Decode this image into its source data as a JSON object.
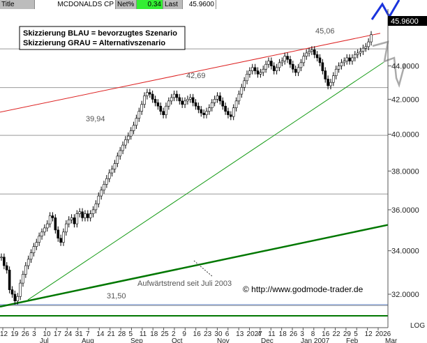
{
  "header": {
    "title_label": "Title",
    "symbol": "MCDONALDS CP",
    "netpct_label": "Net%",
    "netpct_value": "0.34",
    "last_label": "Last",
    "last_value": "45.9600"
  },
  "legend": {
    "line1": "Skizzierung BLAU = bevorzugtes Szenario",
    "line2": "Skizzierung GRAU = Alternativszenario"
  },
  "annotations": {
    "level_4506": "45,06",
    "level_4269": "42,69",
    "level_3994": "39,94",
    "level_3150": "31,50",
    "trend_note": "Aufwärtstrend seit Juli 2003",
    "copyright": "© http://www.godmode-trader.de",
    "price_tag": "45.9600",
    "scale_mode": "LOG"
  },
  "colors": {
    "candle_up": "#ffffff",
    "candle_down": "#000000",
    "resistance": "#dd2222",
    "support": "#119911",
    "trend_thick": "#007700",
    "blue_scenario": "#1a33dd",
    "grey_scenario": "#aaaaaa",
    "hline": "#999999",
    "baseline": "#007700",
    "baseline_blue": "#6688cc"
  },
  "chart_data": {
    "type": "candlestick",
    "ylim": [
      30.9,
      47.4
    ],
    "y_scale": "log",
    "yticks": [
      32.0,
      34.0,
      36.0,
      38.0,
      40.0,
      42.0,
      44.0
    ],
    "ytick_labels": [
      "32.0000",
      "34.0000",
      "36.0000",
      "38.0000",
      "40.0000",
      "42.0000",
      "44.0000"
    ],
    "xtick_labels": [
      "12",
      "19",
      "26",
      "3",
      "10",
      "17",
      "24",
      "31",
      "7",
      "14",
      "21",
      "28",
      "5",
      "11",
      "18",
      "25",
      "2",
      "9",
      "16",
      "23",
      "30",
      "6",
      "13",
      "2027",
      "4",
      "11",
      "18",
      "26",
      "3",
      "8",
      "16",
      "22",
      "29",
      "5",
      "12",
      "2026"
    ],
    "month_labels": [
      "Jul",
      "Aug",
      "Sep",
      "Oct",
      "Nov",
      "Dec",
      "Jan 2007",
      "Feb",
      "Mar"
    ],
    "horizontal_levels": [
      45.06,
      42.69,
      39.94,
      36.8,
      31.5
    ],
    "closes": [
      33.7,
      33.3,
      33.1,
      32.2,
      32.0,
      31.7,
      31.9,
      32.5,
      32.9,
      33.3,
      33.6,
      33.9,
      34.2,
      34.4,
      34.7,
      34.9,
      35.1,
      35.3,
      35.7,
      35.6,
      35.0,
      34.6,
      34.4,
      34.9,
      35.3,
      35.5,
      35.6,
      35.3,
      35.8,
      35.9,
      35.6,
      35.8,
      35.6,
      35.8,
      36.0,
      36.3,
      36.7,
      37.0,
      37.3,
      37.6,
      37.9,
      38.1,
      38.4,
      38.8,
      39.1,
      39.4,
      39.7,
      39.9,
      40.2,
      40.5,
      40.9,
      41.3,
      41.7,
      42.2,
      42.4,
      42.3,
      42.0,
      41.8,
      41.6,
      41.3,
      41.1,
      41.6,
      41.9,
      42.1,
      42.3,
      42.1,
      41.9,
      41.7,
      41.9,
      42.0,
      42.1,
      41.8,
      41.6,
      41.4,
      41.2,
      41.1,
      41.3,
      41.5,
      41.8,
      42.0,
      42.2,
      41.9,
      41.6,
      41.3,
      41.1,
      41.0,
      41.5,
      41.9,
      42.3,
      42.7,
      43.1,
      43.5,
      43.7,
      43.9,
      43.7,
      43.5,
      43.6,
      43.8,
      44.1,
      44.3,
      44.0,
      43.7,
      43.9,
      44.2,
      44.3,
      44.6,
      44.4,
      44.1,
      43.8,
      43.6,
      43.9,
      44.2,
      44.6,
      44.8,
      44.9,
      45.0,
      44.7,
      44.5,
      44.2,
      43.7,
      43.2,
      42.8,
      43.0,
      43.4,
      43.8,
      44.0,
      44.2,
      44.3,
      44.5,
      44.3,
      44.5,
      44.7,
      44.8,
      44.9,
      45.1,
      45.2,
      45.5,
      45.96
    ]
  }
}
